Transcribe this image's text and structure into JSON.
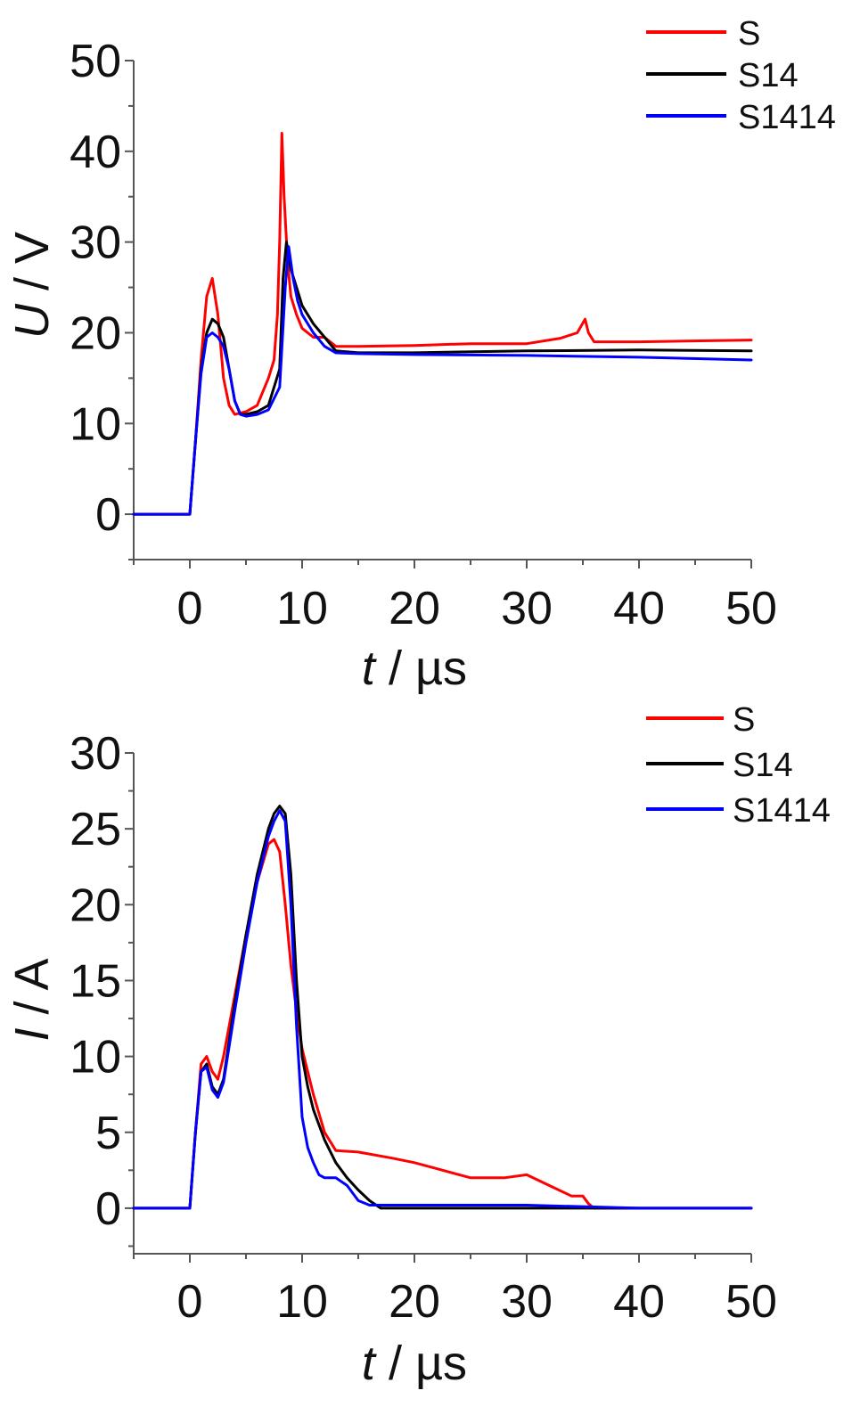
{
  "chart_data": [
    {
      "type": "line",
      "xlabel_var": "t",
      "xlabel_unit": " / µs",
      "ylabel_var": "U",
      "ylabel_unit": " / V",
      "xlim": [
        -5,
        50
      ],
      "ylim": [
        -5,
        50
      ],
      "xticks": [
        0,
        10,
        20,
        30,
        40,
        50
      ],
      "yticks": [
        0,
        10,
        20,
        30,
        40,
        50
      ],
      "legend_position": "top-right",
      "series": [
        {
          "name": "S",
          "color": "#ff0000",
          "x": [
            -5,
            -0.3,
            0,
            0.5,
            1.0,
            1.5,
            2.0,
            2.5,
            3.0,
            3.5,
            4.0,
            5.0,
            6.0,
            7.0,
            7.5,
            7.8,
            8.0,
            8.2,
            8.4,
            8.7,
            9.0,
            9.5,
            10.0,
            11.0,
            12.0,
            13.0,
            15.0,
            20.0,
            25.0,
            30.0,
            33.0,
            34.5,
            35.2,
            35.5,
            36.0,
            40.0,
            50.0
          ],
          "y": [
            0,
            0,
            0,
            8,
            17,
            24,
            26,
            22,
            15,
            12,
            11,
            11.3,
            12,
            15,
            17,
            22,
            30,
            42,
            35,
            28,
            24,
            22,
            20.5,
            19.5,
            19.5,
            18.5,
            18.5,
            18.6,
            18.8,
            18.8,
            19.4,
            20,
            21.5,
            20,
            19,
            19,
            19.2
          ]
        },
        {
          "name": "S14",
          "color": "#000000",
          "x": [
            -5,
            -0.3,
            0,
            0.5,
            1.0,
            1.5,
            2.0,
            2.5,
            3.0,
            3.5,
            4.0,
            4.5,
            5.0,
            6.0,
            7.0,
            8.0,
            8.3,
            8.6,
            9.0,
            9.5,
            10.0,
            11.0,
            12.0,
            13.0,
            15.0,
            20.0,
            30.0,
            40.0,
            50.0
          ],
          "y": [
            0,
            0,
            0,
            8,
            16,
            20,
            21.5,
            21,
            19.5,
            16,
            12.5,
            11,
            11,
            11.3,
            12,
            16,
            26,
            30,
            27,
            25,
            23,
            21,
            19.5,
            18,
            17.8,
            17.8,
            18,
            18.1,
            18
          ]
        },
        {
          "name": "S1414",
          "color": "#0000ff",
          "x": [
            -5,
            -0.3,
            0,
            0.5,
            1.0,
            1.5,
            2.0,
            2.5,
            3.0,
            3.5,
            4.0,
            4.5,
            5.0,
            6.0,
            7.0,
            8.0,
            8.5,
            8.8,
            9.2,
            9.6,
            10.0,
            11.0,
            12.0,
            13.0,
            15.0,
            20.0,
            30.0,
            40.0,
            50.0
          ],
          "y": [
            0,
            0,
            0,
            8,
            15.5,
            19.5,
            20,
            19.5,
            18.5,
            16,
            12.5,
            11,
            10.8,
            11,
            11.5,
            14,
            25,
            29.5,
            26,
            23.5,
            22,
            20,
            18.5,
            17.8,
            17.7,
            17.6,
            17.5,
            17.3,
            17
          ]
        }
      ]
    },
    {
      "type": "line",
      "xlabel_var": "t",
      "xlabel_unit": " / µs",
      "ylabel_var": "I",
      "ylabel_unit": " / A",
      "xlim": [
        -5,
        50
      ],
      "ylim": [
        -3,
        30
      ],
      "xticks": [
        0,
        10,
        20,
        30,
        40,
        50
      ],
      "yticks": [
        0,
        5,
        10,
        15,
        20,
        25,
        30
      ],
      "legend_position": "top-right",
      "series": [
        {
          "name": "S",
          "color": "#ff0000",
          "x": [
            -5,
            -0.3,
            0,
            0.5,
            1.0,
            1.5,
            2.0,
            2.5,
            3.0,
            4.0,
            5.0,
            6.0,
            7.0,
            7.5,
            8.0,
            8.5,
            9.0,
            9.5,
            10.0,
            11.0,
            12.0,
            13.0,
            15.0,
            18.0,
            20.0,
            22.0,
            25.0,
            28.0,
            30.0,
            32.0,
            34.0,
            35.0,
            35.5,
            36.0,
            40.0,
            50.0
          ],
          "y": [
            0,
            0,
            0,
            5,
            9.5,
            10,
            9,
            8.5,
            10,
            14,
            18,
            21.5,
            24,
            24.3,
            23.5,
            20,
            16,
            13,
            10.5,
            7.5,
            5,
            3.8,
            3.7,
            3.3,
            3,
            2.6,
            2,
            2,
            2.2,
            1.5,
            0.8,
            0.8,
            0.3,
            0,
            0,
            0
          ]
        },
        {
          "name": "S14",
          "color": "#000000",
          "x": [
            -5,
            -0.3,
            0,
            0.5,
            1.0,
            1.5,
            2.0,
            2.5,
            3.0,
            4.0,
            5.0,
            6.0,
            7.0,
            7.5,
            8.0,
            8.5,
            9.0,
            9.5,
            10.0,
            10.5,
            11.0,
            12.0,
            13.0,
            14.0,
            15.0,
            16.0,
            17.0,
            20.0,
            30.0,
            40.0,
            50.0
          ],
          "y": [
            0,
            0,
            0,
            5,
            9,
            9.5,
            8,
            7.5,
            8.5,
            13.5,
            18,
            22,
            25,
            26,
            26.5,
            26,
            22,
            15,
            10,
            8,
            6.5,
            4.5,
            3,
            2,
            1.2,
            0.5,
            0,
            0,
            0,
            0,
            0
          ]
        },
        {
          "name": "S1414",
          "color": "#0000ff",
          "x": [
            -5,
            -0.3,
            0,
            0.5,
            1.0,
            1.5,
            2.0,
            2.5,
            3.0,
            4.0,
            5.0,
            6.0,
            7.0,
            7.5,
            8.0,
            8.5,
            9.0,
            9.5,
            10.0,
            10.5,
            11.0,
            11.5,
            12.0,
            13.0,
            14.0,
            15.0,
            16.0,
            20.0,
            30.0,
            40.0,
            50.0
          ],
          "y": [
            0,
            0,
            0,
            5,
            9,
            9.3,
            7.8,
            7.3,
            8.3,
            13,
            17.5,
            21.5,
            24.5,
            25.5,
            26.2,
            25.5,
            20,
            12,
            6,
            4,
            3,
            2.2,
            2,
            2,
            1.5,
            0.5,
            0.2,
            0.2,
            0.2,
            0,
            0
          ]
        }
      ]
    }
  ]
}
